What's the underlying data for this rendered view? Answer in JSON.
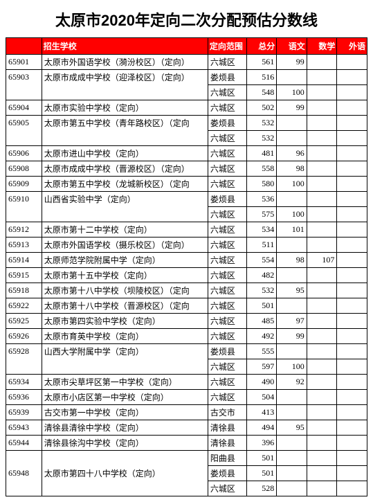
{
  "title": "太原市2020年定向二次分配预估分数线",
  "headers": [
    "",
    "招生学校",
    "定向范围",
    "总分",
    "语文",
    "数学",
    "外语"
  ],
  "rows": [
    {
      "code": "65901",
      "school": "太原市外国语学校（漪汾校区）（定向）",
      "spans": [
        {
          "area": "六城区",
          "total": "561",
          "chi": "99",
          "math": "",
          "eng": ""
        }
      ]
    },
    {
      "code": "65903",
      "school": "太原市成成中学校（迎泽校区）（定向）",
      "spans": [
        {
          "area": "娄烦县",
          "total": "516",
          "chi": "",
          "math": "",
          "eng": ""
        },
        {
          "area": "六城区",
          "total": "548",
          "chi": "100",
          "math": "",
          "eng": ""
        }
      ]
    },
    {
      "code": "65904",
      "school": "太原市实验中学校（定向）",
      "spans": [
        {
          "area": "六城区",
          "total": "502",
          "chi": "99",
          "math": "",
          "eng": ""
        }
      ]
    },
    {
      "code": "65905",
      "school": "太原市第五中学校（青年路校区）（定向",
      "spans": [
        {
          "area": "娄烦县",
          "total": "532",
          "chi": "",
          "math": "",
          "eng": ""
        },
        {
          "area": "六城区",
          "total": "532",
          "chi": "",
          "math": "",
          "eng": ""
        }
      ]
    },
    {
      "code": "65906",
      "school": "太原市进山中学校（定向）",
      "spans": [
        {
          "area": "六城区",
          "total": "481",
          "chi": "96",
          "math": "",
          "eng": ""
        }
      ]
    },
    {
      "code": "65908",
      "school": "太原市成成中学校（晋源校区）（定向）",
      "spans": [
        {
          "area": "六城区",
          "total": "558",
          "chi": "98",
          "math": "",
          "eng": ""
        }
      ]
    },
    {
      "code": "65909",
      "school": "太原市第五中学校（龙城新校区）（定向",
      "spans": [
        {
          "area": "六城区",
          "total": "580",
          "chi": "100",
          "math": "",
          "eng": ""
        }
      ]
    },
    {
      "code": "65910",
      "school": "山西省实验中学（定向）",
      "spans": [
        {
          "area": "娄烦县",
          "total": "536",
          "chi": "",
          "math": "",
          "eng": ""
        },
        {
          "area": "六城区",
          "total": "575",
          "chi": "100",
          "math": "",
          "eng": ""
        }
      ]
    },
    {
      "code": "65912",
      "school": "太原市第十二中学校（定向）",
      "spans": [
        {
          "area": "六城区",
          "total": "534",
          "chi": "101",
          "math": "",
          "eng": ""
        }
      ]
    },
    {
      "code": "65913",
      "school": "太原市外国语学校（摄乐校区）（定向）",
      "spans": [
        {
          "area": "六城区",
          "total": "511",
          "chi": "",
          "math": "",
          "eng": ""
        }
      ]
    },
    {
      "code": "65914",
      "school": "太原师范学院附属中学（定向）",
      "spans": [
        {
          "area": "六城区",
          "total": "554",
          "chi": "98",
          "math": "107",
          "eng": ""
        }
      ]
    },
    {
      "code": "65915",
      "school": "太原市第十五中学校（定向）",
      "spans": [
        {
          "area": "六城区",
          "total": "482",
          "chi": "",
          "math": "",
          "eng": ""
        }
      ]
    },
    {
      "code": "65918",
      "school": "太原市第十八中学校（坝陵校区）（定向",
      "spans": [
        {
          "area": "六城区",
          "total": "532",
          "chi": "95",
          "math": "",
          "eng": ""
        }
      ]
    },
    {
      "code": "65922",
      "school": "太原市第十八中学校（晋源校区）（定向",
      "spans": [
        {
          "area": "六城区",
          "total": "501",
          "chi": "",
          "math": "",
          "eng": ""
        }
      ]
    },
    {
      "code": "65925",
      "school": "太原市第四实验中学校（定向）",
      "spans": [
        {
          "area": "六城区",
          "total": "485",
          "chi": "97",
          "math": "",
          "eng": ""
        }
      ]
    },
    {
      "code": "65926",
      "school": "太原市育英中学校（定向）",
      "spans": [
        {
          "area": "六城区",
          "total": "492",
          "chi": "99",
          "math": "",
          "eng": ""
        }
      ]
    },
    {
      "code": "65928",
      "school": "山西大学附属中学（定向）",
      "spans": [
        {
          "area": "娄烦县",
          "total": "555",
          "chi": "",
          "math": "",
          "eng": ""
        },
        {
          "area": "六城区",
          "total": "597",
          "chi": "100",
          "math": "",
          "eng": ""
        }
      ]
    },
    {
      "code": "65934",
      "school": "太原市尖草坪区第一中学校（定向）",
      "spans": [
        {
          "area": "六城区",
          "total": "490",
          "chi": "92",
          "math": "",
          "eng": ""
        }
      ]
    },
    {
      "code": "65936",
      "school": "太原市小店区第一中学校（定向）",
      "spans": [
        {
          "area": "六城区",
          "total": "504",
          "chi": "",
          "math": "",
          "eng": ""
        }
      ]
    },
    {
      "code": "65939",
      "school": "古交市第一中学校（定向）",
      "spans": [
        {
          "area": "古交市",
          "total": "413",
          "chi": "",
          "math": "",
          "eng": ""
        }
      ]
    },
    {
      "code": "65943",
      "school": "清徐县清徐中学校（定向）",
      "spans": [
        {
          "area": "清徐县",
          "total": "494",
          "chi": "95",
          "math": "",
          "eng": ""
        }
      ]
    },
    {
      "code": "65944",
      "school": "清徐县徐沟中学校（定向）",
      "spans": [
        {
          "area": "清徐县",
          "total": "396",
          "chi": "",
          "math": "",
          "eng": ""
        }
      ]
    },
    {
      "code": "65948",
      "school": "太原市第四十八中学校（定向）",
      "spans": [
        {
          "area": "阳曲县",
          "total": "501",
          "chi": "",
          "math": "",
          "eng": ""
        },
        {
          "area": "娄烦县",
          "total": "501",
          "chi": "",
          "math": "",
          "eng": ""
        },
        {
          "area": "六城区",
          "total": "528",
          "chi": "",
          "math": "",
          "eng": ""
        }
      ]
    }
  ]
}
